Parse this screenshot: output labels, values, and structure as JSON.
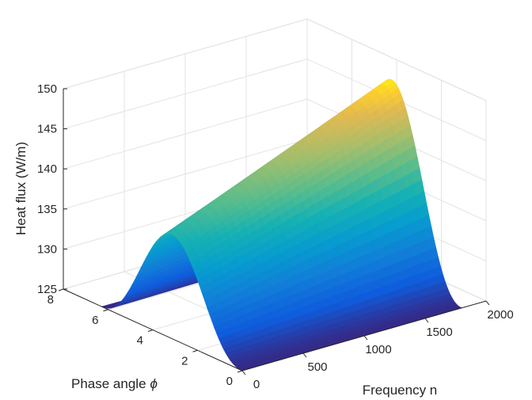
{
  "chart_data": {
    "type": "surface",
    "title": "",
    "xlabel": "Frequency n",
    "ylabel": "Phase angle",
    "ylabel_symbol": "ϕ",
    "zlabel": "Heat flux (W/m)",
    "xlim": [
      0,
      2000
    ],
    "ylim": [
      0,
      8
    ],
    "zlim": [
      125,
      150
    ],
    "x_ticks": [
      0,
      500,
      1000,
      1500,
      2000
    ],
    "y_ticks": [
      0,
      2,
      4,
      6,
      8
    ],
    "z_ticks": [
      125,
      130,
      135,
      140,
      145,
      150
    ],
    "grid": true,
    "colormap": "parula",
    "surface": {
      "x_range": [
        0,
        1800
      ],
      "y_range": [
        0,
        6.28
      ],
      "description_of_shape": "heat flux peaks at phase angle ~3.14 and rises linearly with frequency",
      "base_value": 125,
      "peak_at_phase": 3.14,
      "peak_value_at_x_min": 138,
      "peak_value_at_x_max": 149.5,
      "samples": [
        {
          "x": 0,
          "y": 0,
          "z": 125
        },
        {
          "x": 0,
          "y": 3.14,
          "z": 138
        },
        {
          "x": 0,
          "y": 6.28,
          "z": 125
        },
        {
          "x": 900,
          "y": 3.14,
          "z": 143.8
        },
        {
          "x": 1800,
          "y": 0,
          "z": 125
        },
        {
          "x": 1800,
          "y": 3.14,
          "z": 149.5
        },
        {
          "x": 1800,
          "y": 6.28,
          "z": 125
        }
      ]
    }
  }
}
